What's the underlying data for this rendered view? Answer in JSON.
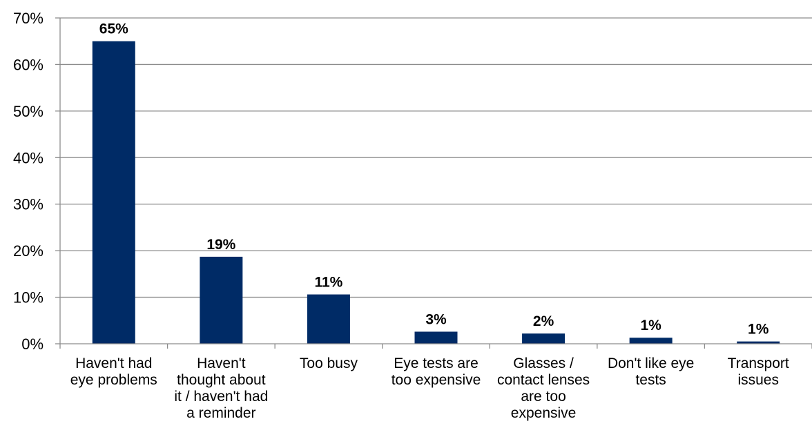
{
  "chart_data": {
    "type": "bar",
    "categories": [
      [
        "Haven't had",
        "eye problems"
      ],
      [
        "Haven't",
        "thought about",
        "it / haven't had",
        "a reminder"
      ],
      [
        "Too busy"
      ],
      [
        "Eye tests are",
        "too expensive"
      ],
      [
        "Glasses /",
        "contact lenses",
        "are too",
        "expensive"
      ],
      [
        "Don't like eye",
        "tests"
      ],
      [
        "Transport",
        "issues"
      ]
    ],
    "values": [
      65,
      18.7,
      10.6,
      2.6,
      2.2,
      1.3,
      0.5
    ],
    "data_labels": [
      "65%",
      "19%",
      "11%",
      "3%",
      "2%",
      "1%",
      "1%"
    ],
    "y_ticks": [
      {
        "value": 0,
        "label": "0%"
      },
      {
        "value": 10,
        "label": "10%"
      },
      {
        "value": 20,
        "label": "20%"
      },
      {
        "value": 30,
        "label": "30%"
      },
      {
        "value": 40,
        "label": "40%"
      },
      {
        "value": 50,
        "label": "50%"
      },
      {
        "value": 60,
        "label": "60%"
      },
      {
        "value": 70,
        "label": "70%"
      }
    ],
    "ylim": [
      0,
      70
    ],
    "grid": true,
    "legend": "none",
    "bar_color": "#002b66",
    "grid_color": "#8c8c8c"
  }
}
